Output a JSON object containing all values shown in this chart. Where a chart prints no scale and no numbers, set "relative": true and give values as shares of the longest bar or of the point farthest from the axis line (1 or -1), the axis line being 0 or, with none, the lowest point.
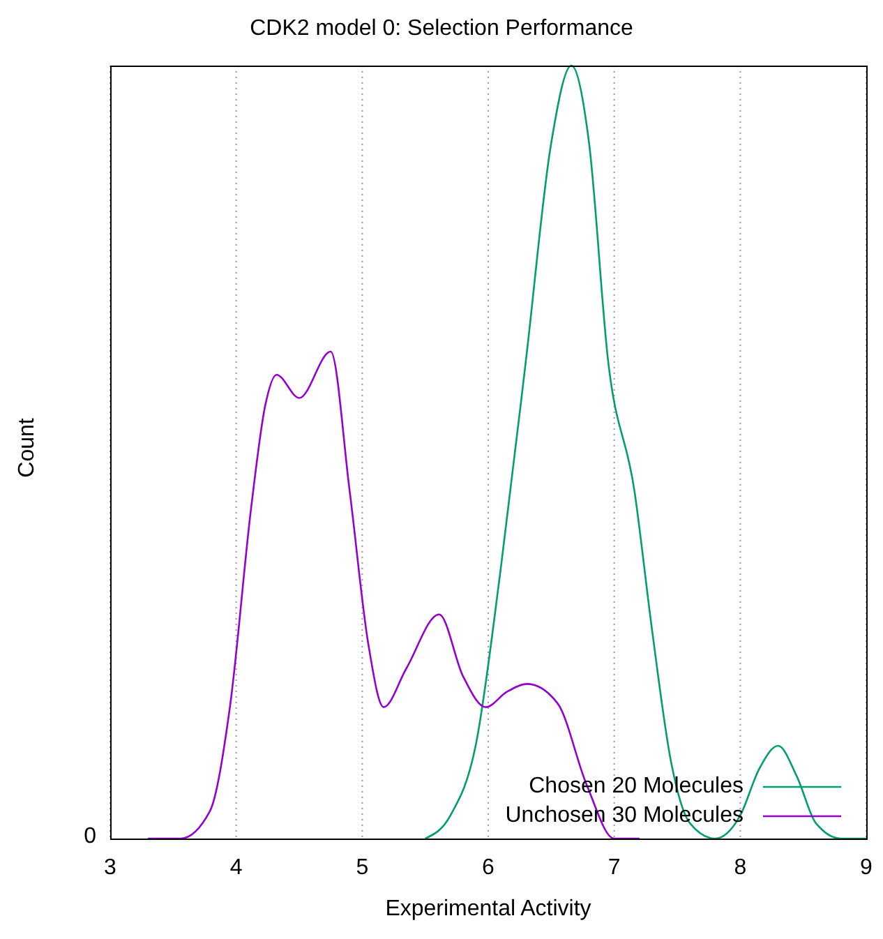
{
  "chart_data": {
    "type": "line",
    "title": "CDK2 model 0: Selection Performance",
    "xlabel": "Experimental Activity",
    "ylabel": "Count",
    "relative": true,
    "annotations": [
      "0"
    ],
    "xlim": [
      3,
      9
    ],
    "xticks": [
      3,
      4,
      5,
      6,
      7,
      8,
      9
    ],
    "grid": "x",
    "legend": "bottom right",
    "marker": "none",
    "line_style": "solid",
    "series": [
      {
        "name": "Chosen 20 Molecules",
        "color": "#009e73",
        "x": [
          5.5,
          5.7,
          5.9,
          6.1,
          6.3,
          6.5,
          6.66,
          6.8,
          6.95,
          7.16,
          7.3,
          7.45,
          7.6,
          7.8,
          8.0,
          8.15,
          8.3,
          8.45,
          8.6,
          8.8,
          9.0
        ],
        "values": [
          0,
          0.03,
          0.12,
          0.35,
          0.62,
          0.9,
          1.0,
          0.9,
          0.62,
          0.45,
          0.27,
          0.1,
          0.02,
          0,
          0.03,
          0.09,
          0.12,
          0.08,
          0.02,
          0,
          0
        ]
      },
      {
        "name": "Unchosen 30 Molecules",
        "color": "#9400d3",
        "x": [
          3.3,
          3.56,
          3.79,
          3.95,
          4.12,
          4.23,
          4.32,
          4.5,
          4.75,
          4.9,
          5.05,
          5.17,
          5.35,
          5.61,
          5.8,
          5.98,
          6.15,
          6.31,
          6.55,
          6.78,
          7.0,
          7.2
        ],
        "values": [
          0,
          0,
          0.035,
          0.17,
          0.43,
          0.56,
          0.6,
          0.57,
          0.63,
          0.45,
          0.25,
          0.17,
          0.22,
          0.29,
          0.21,
          0.17,
          0.19,
          0.2,
          0.175,
          0.07,
          0,
          0
        ]
      }
    ]
  }
}
